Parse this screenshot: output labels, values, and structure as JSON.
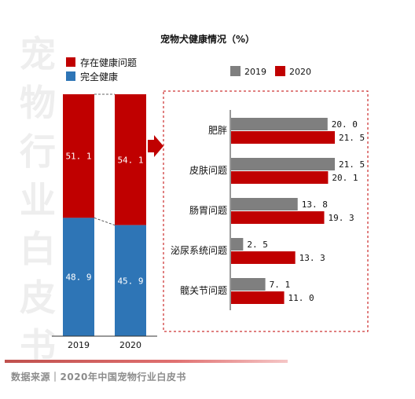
{
  "title": "宠物犬健康情况（%）",
  "watermark": "宠物行业白皮书",
  "source": "数据来源｜2020年中国宠物行业白皮书",
  "colors": {
    "red": "#c00000",
    "blue": "#2e75b6",
    "gray": "#7f7f7f",
    "dash": "#c00000"
  },
  "chart_data": [
    {
      "type": "bar",
      "stacked": true,
      "categories": [
        "2019",
        "2020"
      ],
      "series": [
        {
          "name": "存在健康问题",
          "values": [
            51.1,
            54.1
          ]
        },
        {
          "name": "完全健康",
          "values": [
            48.9,
            45.9
          ]
        }
      ],
      "ylim": [
        0,
        100
      ],
      "legend": "top-left"
    },
    {
      "type": "bar",
      "orientation": "horizontal",
      "categories": [
        "肥胖",
        "皮肤问题",
        "肠胃问题",
        "泌尿系统问题",
        "髋关节问题"
      ],
      "series": [
        {
          "name": "2019",
          "values": [
            20.0,
            21.5,
            13.8,
            2.5,
            7.1
          ]
        },
        {
          "name": "2020",
          "values": [
            21.5,
            20.1,
            19.3,
            13.3,
            11.0
          ]
        }
      ],
      "xlim": [
        0,
        25
      ],
      "legend": "top"
    }
  ]
}
